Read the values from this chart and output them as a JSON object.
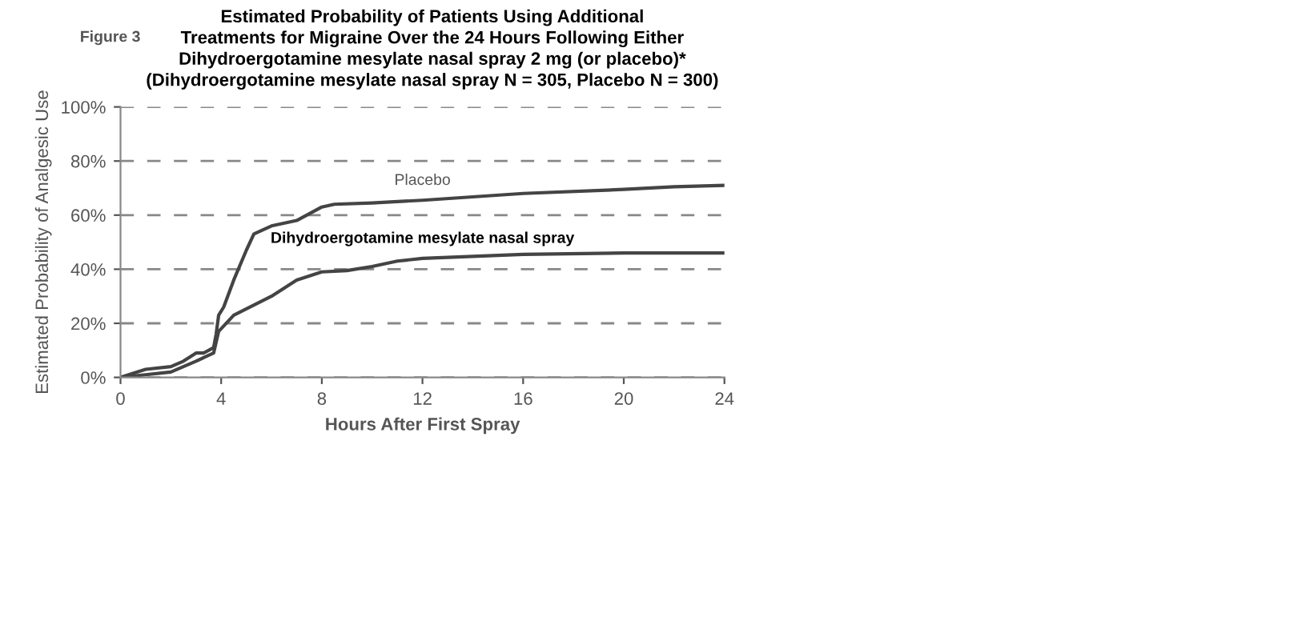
{
  "chart_data": {
    "type": "line",
    "title": "Estimated Probability of Patients Using Additional\nTreatments for Migraine Over the 24 Hours Following Either\nDihydroergotamine mesylate nasal spray 2 mg (or placebo)*\n(Dihydroergotamine mesylate nasal spray N = 305, Placebo N = 300)",
    "xlabel": "Hours After First Spray",
    "ylabel": "Estimated Probability of Analgesic Use",
    "annotations": [
      "Figure 3"
    ],
    "series": [
      {
        "name": "Placebo",
        "color": "#444444",
        "x": [
          0,
          0.5,
          1,
          2,
          2.5,
          3,
          3.3,
          3.7,
          3.8,
          3.9,
          4.1,
          4.5,
          5,
          5.3,
          6,
          7,
          8,
          8.5,
          10,
          12,
          16,
          20,
          22,
          24
        ],
        "values": [
          0,
          1.5,
          3,
          4,
          6,
          9,
          9,
          11,
          16,
          23,
          26,
          36,
          47,
          53,
          56,
          58,
          63,
          64,
          64.5,
          65.5,
          68,
          69.5,
          70.5,
          71
        ]
      },
      {
        "name": "Dihydroergotamine mesylate nasal spray",
        "color": "#444444",
        "x": [
          0,
          1,
          2,
          3,
          3.7,
          3.9,
          4.5,
          6,
          7,
          8,
          9,
          10,
          11,
          12,
          16,
          20,
          24
        ],
        "values": [
          0,
          1,
          2,
          6,
          9,
          17,
          23,
          30,
          36,
          39,
          39.5,
          41,
          43,
          44,
          45.5,
          46,
          46
        ]
      }
    ],
    "xlim": [
      0,
      24
    ],
    "xticks": [
      0,
      4,
      8,
      12,
      16,
      20,
      24
    ],
    "ylim": [
      0,
      100
    ],
    "yticks": [
      {
        "value": 0,
        "label": "0%"
      },
      {
        "value": 20,
        "label": "20%"
      },
      {
        "value": 40,
        "label": "40%"
      },
      {
        "value": 60,
        "label": "60%"
      },
      {
        "value": 80,
        "label": "80%"
      },
      {
        "value": 100,
        "label": "100%"
      }
    ],
    "grid": "y",
    "legend": false,
    "marker": "none",
    "line_style": "solid"
  }
}
